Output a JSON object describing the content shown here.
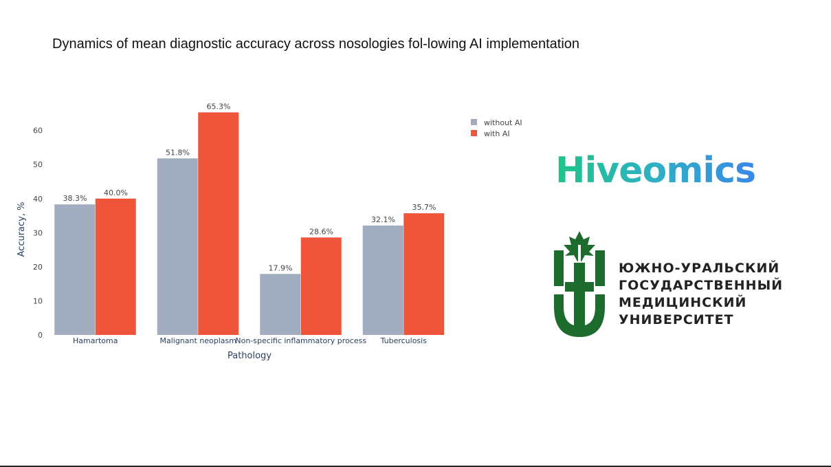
{
  "slide": {
    "title": "Dynamics of mean diagnostic accuracy across nosologies fol-lowing AI implementation"
  },
  "chart_data": {
    "type": "bar",
    "xlabel": "Pathology",
    "ylabel": "Accuracy, %",
    "ylim": [
      0,
      68
    ],
    "yticks": [
      0,
      10,
      20,
      30,
      40,
      50,
      60
    ],
    "categories": [
      "Hamartoma",
      "Malignant neoplasm",
      "Non-specific inflammatory process",
      "Tuberculosis"
    ],
    "series": [
      {
        "name": "without AI",
        "color": "#a1adbf",
        "values": [
          38.3,
          51.8,
          17.9,
          32.1
        ],
        "labels": [
          "38.3%",
          "51.8%",
          "17.9%",
          "32.1%"
        ]
      },
      {
        "name": "with AI",
        "color": "#ef553b",
        "values": [
          40.0,
          65.3,
          28.6,
          35.7
        ],
        "labels": [
          "40.0%",
          "65.3%",
          "28.6%",
          "35.7%"
        ]
      }
    ],
    "grid": false,
    "legend_position": "top-right"
  },
  "logos": {
    "hiveomics": {
      "text": "Hiveomics",
      "color_start": "#1fc48a",
      "color_end": "#3a87e8"
    },
    "university": {
      "lines": [
        "ЮЖНО-УРАЛЬСКИЙ",
        "ГОСУДАРСТВЕННЫЙ",
        "МЕДИЦИНСКИЙ",
        "УНИВЕРСИТЕТ"
      ],
      "color": "#1e6b2e"
    }
  }
}
